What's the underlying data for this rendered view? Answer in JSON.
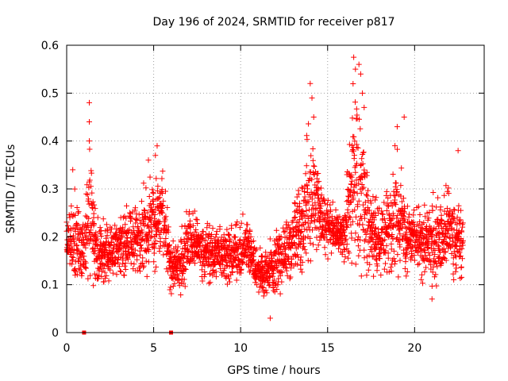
{
  "chart_data": {
    "type": "scatter",
    "title": "Day 196 of 2024, SRMTID for receiver p817",
    "xlabel": "GPS time / hours",
    "ylabel": "SRMTID / TECUs",
    "xlim": [
      0,
      24
    ],
    "ylim": [
      0,
      0.6
    ],
    "xticks": [
      0,
      5,
      10,
      15,
      20
    ],
    "xtick_labels": [
      "0",
      "5",
      "10",
      "15",
      "20"
    ],
    "yticks": [
      0,
      0.1,
      0.2,
      0.3,
      0.4,
      0.5,
      0.6
    ],
    "ytick_labels": [
      "0",
      "0.1",
      "0.2",
      "0.3",
      "0.4",
      "0.5",
      "0.6"
    ],
    "grid": true,
    "marker": "+",
    "color": "#ff0000",
    "zero_markers": [
      {
        "x": 1.0,
        "y": 0
      },
      {
        "x": 6.0,
        "y": 0
      }
    ],
    "envelope": {
      "x": [
        0,
        0.5,
        1.0,
        1.3,
        1.8,
        2.5,
        3.2,
        4.0,
        4.5,
        5.0,
        5.5,
        6.0,
        6.5,
        7.0,
        7.5,
        8.0,
        9.0,
        10.0,
        10.5,
        11.0,
        11.5,
        12.0,
        12.5,
        13.0,
        13.5,
        14.0,
        14.5,
        15.0,
        15.5,
        16.0,
        16.5,
        17.0,
        17.5,
        18.0,
        18.5,
        19.0,
        19.5,
        20.0,
        20.5,
        21.0,
        21.5,
        22.0,
        22.5,
        22.8
      ],
      "ymin": [
        0.1,
        0.09,
        0.1,
        0.09,
        0.08,
        0.1,
        0.11,
        0.11,
        0.11,
        0.12,
        0.1,
        0.08,
        0.07,
        0.11,
        0.11,
        0.1,
        0.1,
        0.09,
        0.1,
        0.08,
        0.07,
        0.08,
        0.08,
        0.09,
        0.11,
        0.12,
        0.14,
        0.15,
        0.15,
        0.14,
        0.12,
        0.11,
        0.11,
        0.11,
        0.1,
        0.11,
        0.11,
        0.11,
        0.1,
        0.09,
        0.1,
        0.1,
        0.11,
        0.11
      ],
      "ymax": [
        0.24,
        0.31,
        0.25,
        0.44,
        0.24,
        0.24,
        0.26,
        0.28,
        0.33,
        0.36,
        0.37,
        0.2,
        0.21,
        0.27,
        0.25,
        0.24,
        0.22,
        0.25,
        0.26,
        0.18,
        0.18,
        0.22,
        0.24,
        0.27,
        0.33,
        0.47,
        0.36,
        0.3,
        0.26,
        0.28,
        0.56,
        0.48,
        0.33,
        0.27,
        0.33,
        0.43,
        0.3,
        0.27,
        0.28,
        0.3,
        0.28,
        0.33,
        0.28,
        0.26
      ]
    },
    "spikes": [
      {
        "x": 1.3,
        "y": 0.48
      },
      {
        "x": 1.3,
        "y": 0.44
      },
      {
        "x": 1.3,
        "y": 0.4
      },
      {
        "x": 0.35,
        "y": 0.34
      },
      {
        "x": 4.7,
        "y": 0.36
      },
      {
        "x": 5.1,
        "y": 0.37
      },
      {
        "x": 5.2,
        "y": 0.39
      },
      {
        "x": 14.0,
        "y": 0.52
      },
      {
        "x": 14.1,
        "y": 0.49
      },
      {
        "x": 14.2,
        "y": 0.45
      },
      {
        "x": 16.5,
        "y": 0.575
      },
      {
        "x": 16.6,
        "y": 0.55
      },
      {
        "x": 16.8,
        "y": 0.56
      },
      {
        "x": 16.9,
        "y": 0.54
      },
      {
        "x": 17.0,
        "y": 0.5
      },
      {
        "x": 17.1,
        "y": 0.47
      },
      {
        "x": 19.4,
        "y": 0.45
      },
      {
        "x": 19.0,
        "y": 0.43
      },
      {
        "x": 11.7,
        "y": 0.03
      },
      {
        "x": 22.5,
        "y": 0.38
      },
      {
        "x": 21.0,
        "y": 0.07
      }
    ]
  }
}
